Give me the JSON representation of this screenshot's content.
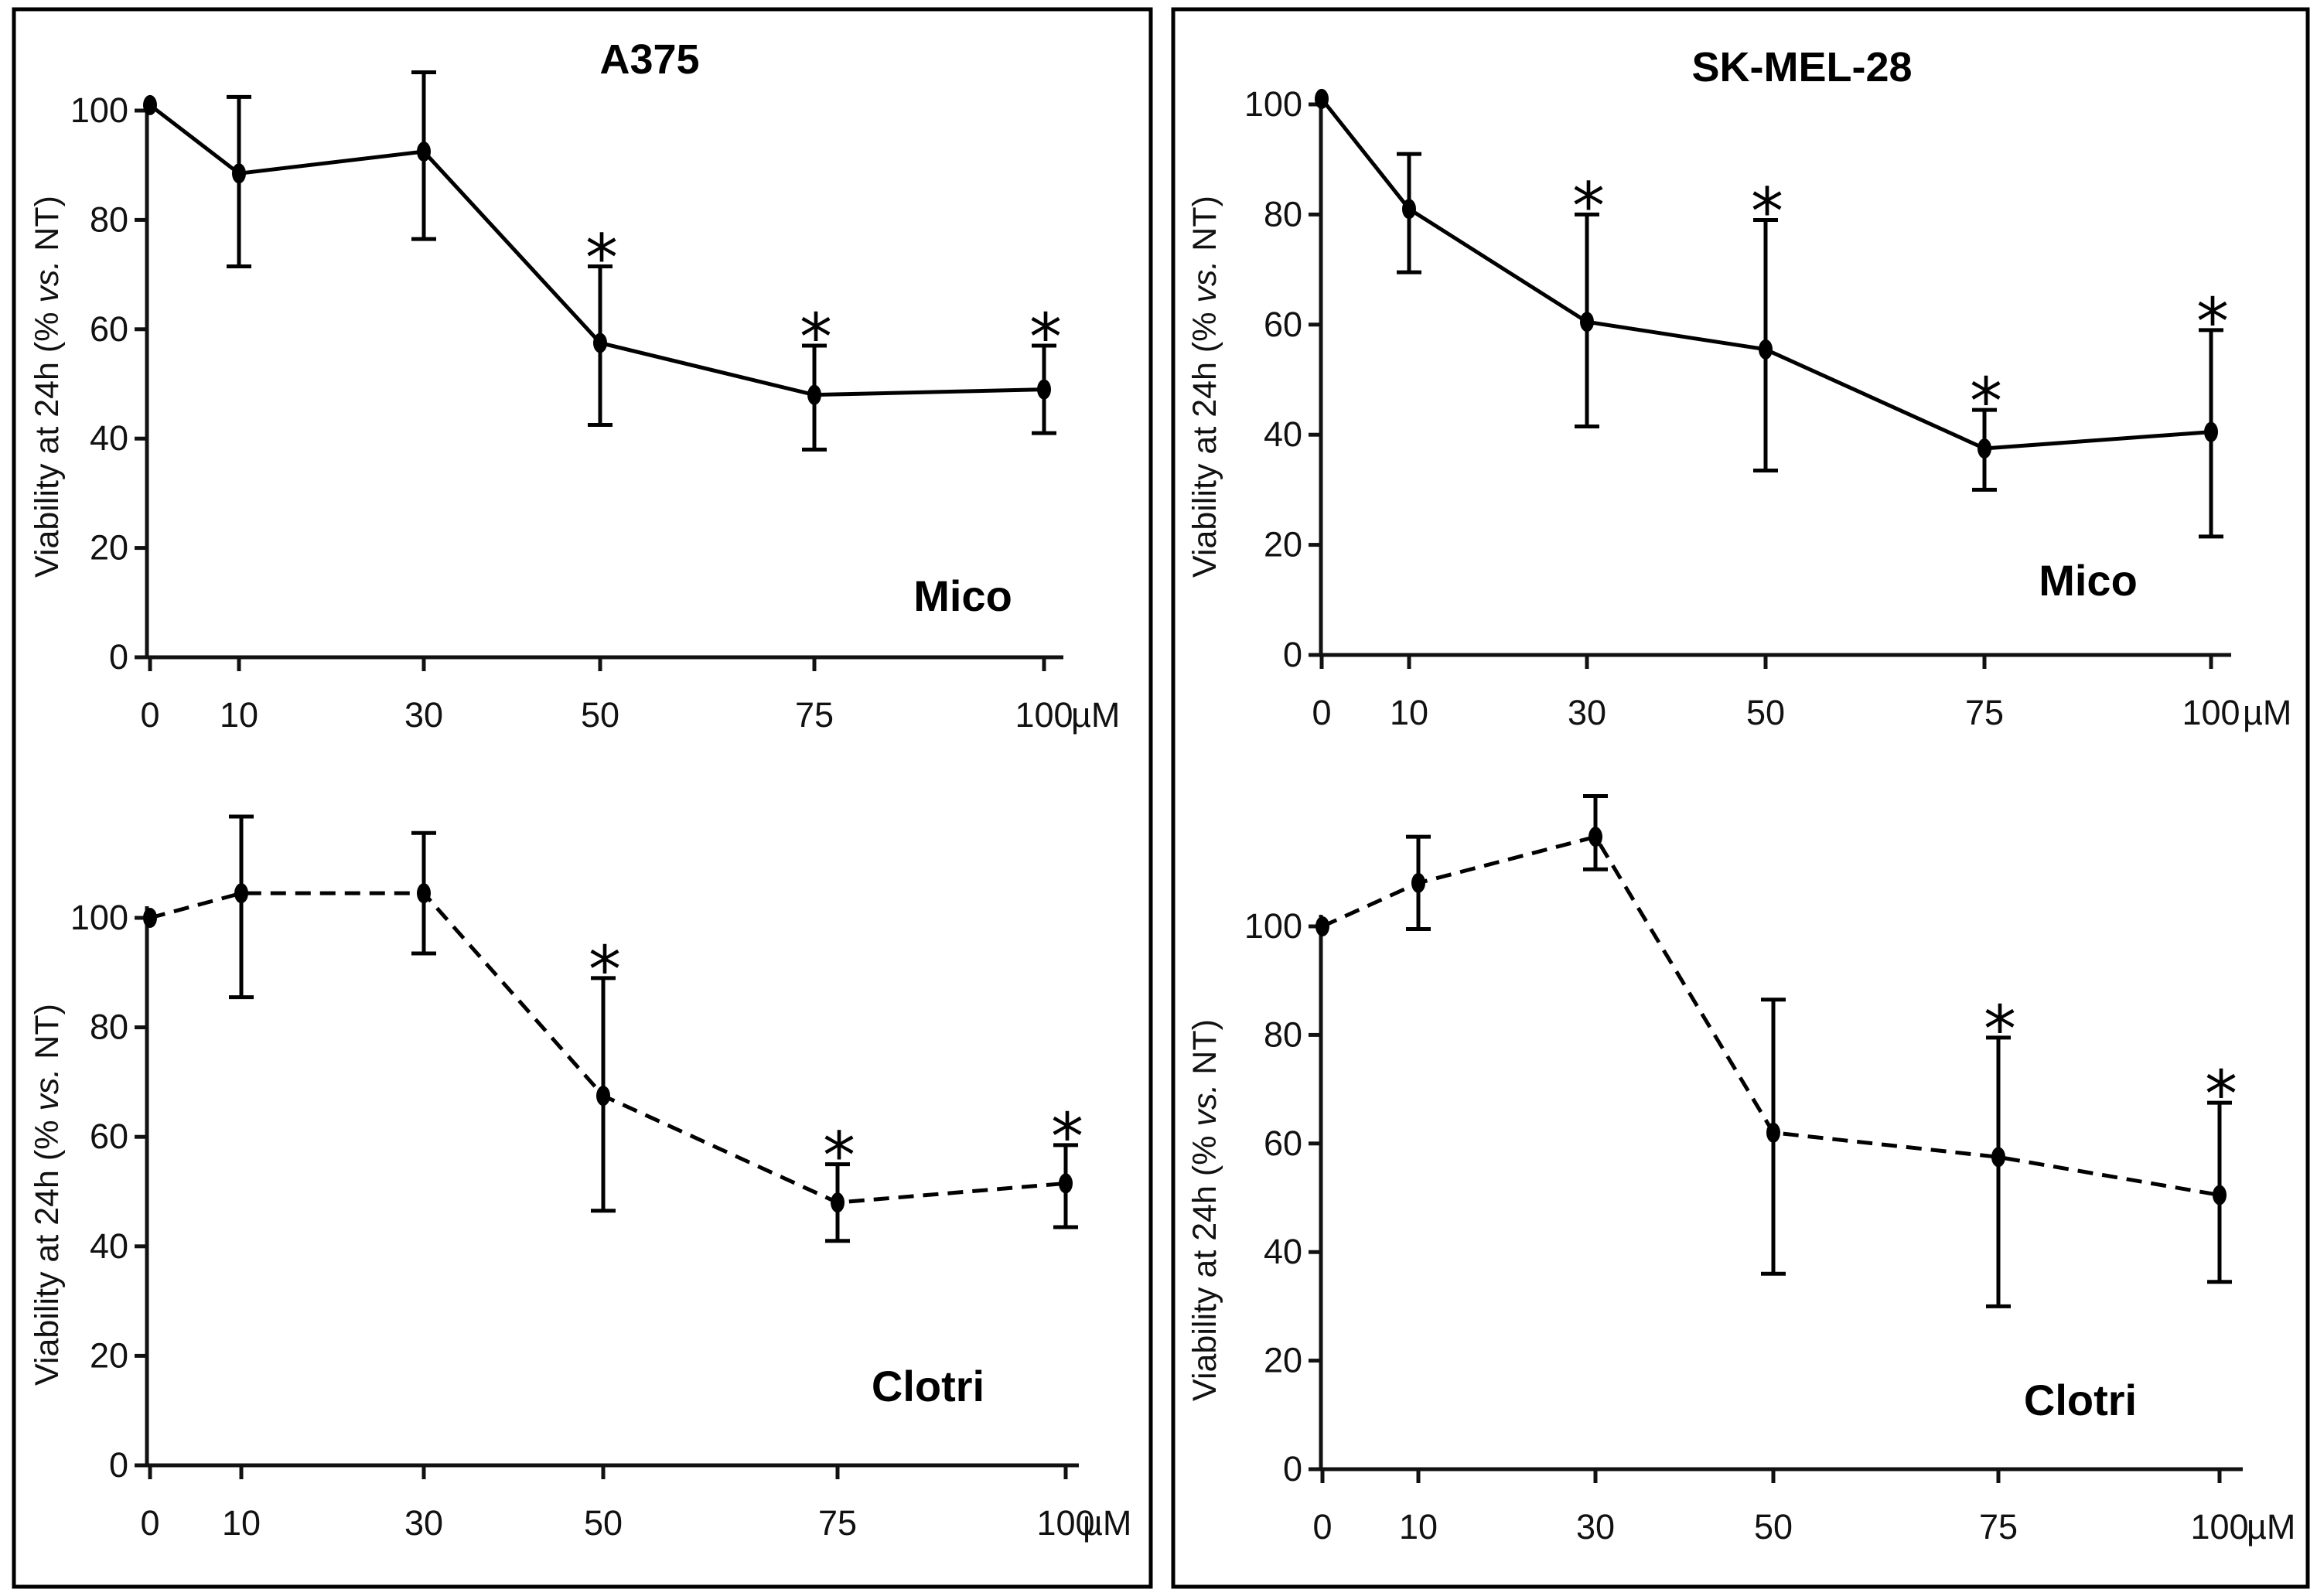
{
  "chart_data": [
    {
      "type": "line",
      "panel": "top-left",
      "title": "A375",
      "drug_label": "Mico",
      "ylabel_parts": [
        "Viability at 24h (% ",
        "vs.",
        " NT)"
      ],
      "x_categories": [
        "0",
        "10",
        "30",
        "50",
        "75",
        "100"
      ],
      "x_unit": "µM",
      "ylim": [
        0,
        100
      ],
      "yticks": [
        "0",
        "20",
        "40",
        "60",
        "80",
        "100"
      ],
      "line_style": "solid",
      "values": [
        101,
        88.5,
        92.5,
        57.5,
        48,
        49
      ],
      "err_upper": [
        101,
        102.5,
        107,
        71.5,
        57,
        57
      ],
      "err_lower": [
        101,
        71.5,
        76.5,
        42.5,
        38,
        41
      ],
      "significant": [
        false,
        false,
        false,
        true,
        true,
        true
      ]
    },
    {
      "type": "line",
      "panel": "top-right",
      "title": "SK-MEL-28",
      "drug_label": "Mico",
      "ylabel_parts": [
        "Viability at 24h (% ",
        "vs.",
        " NT)"
      ],
      "x_categories": [
        "0",
        "10",
        "30",
        "50",
        "75",
        "100"
      ],
      "x_unit": "µM",
      "ylim": [
        0,
        100
      ],
      "yticks": [
        "0",
        "20",
        "40",
        "60",
        "80",
        "100"
      ],
      "line_style": "solid",
      "values": [
        101,
        81,
        60.5,
        55.5,
        37.5,
        40.5
      ],
      "err_upper": [
        101,
        91,
        80,
        79,
        44.5,
        59
      ],
      "err_lower": [
        101,
        69.5,
        41.5,
        33.5,
        30,
        21.5
      ],
      "significant": [
        false,
        false,
        true,
        true,
        true,
        true
      ]
    },
    {
      "type": "line",
      "panel": "bottom-left",
      "title": "",
      "drug_label": "Clotri",
      "ylabel_parts": [
        "Viability at 24h (% ",
        "vs.",
        " NT)"
      ],
      "x_categories": [
        "0",
        "10",
        "30",
        "50",
        "75",
        "100"
      ],
      "x_unit": "µM",
      "ylim": [
        0,
        100
      ],
      "yticks": [
        "0",
        "20",
        "40",
        "60",
        "80",
        "100"
      ],
      "line_style": "dashed",
      "values": [
        100,
        104.5,
        104.5,
        67.5,
        48,
        51.5
      ],
      "err_upper": [
        100,
        118.5,
        115.5,
        89,
        55,
        58.5
      ],
      "err_lower": [
        100,
        85.5,
        93.5,
        46.5,
        41,
        43.5
      ],
      "significant": [
        false,
        false,
        false,
        true,
        true,
        true
      ]
    },
    {
      "type": "line",
      "panel": "bottom-right",
      "title": "",
      "drug_label": "Clotri",
      "ylabel_parts": [
        "Viability at 24h (% ",
        "vs.",
        " NT)"
      ],
      "x_categories": [
        "0",
        "10",
        "30",
        "50",
        "75",
        "100"
      ],
      "x_unit": "µM",
      "ylim": [
        0,
        100
      ],
      "yticks": [
        "0",
        "20",
        "40",
        "60",
        "80",
        "100"
      ],
      "line_style": "dashed",
      "values": [
        100,
        108,
        116.5,
        62,
        57.5,
        50.5
      ],
      "err_upper": [
        100,
        116.5,
        124,
        86.5,
        79.5,
        67.5
      ],
      "err_lower": [
        100,
        99.5,
        110.5,
        36,
        30,
        34.5
      ],
      "significant": [
        false,
        false,
        false,
        false,
        true,
        true
      ]
    }
  ]
}
